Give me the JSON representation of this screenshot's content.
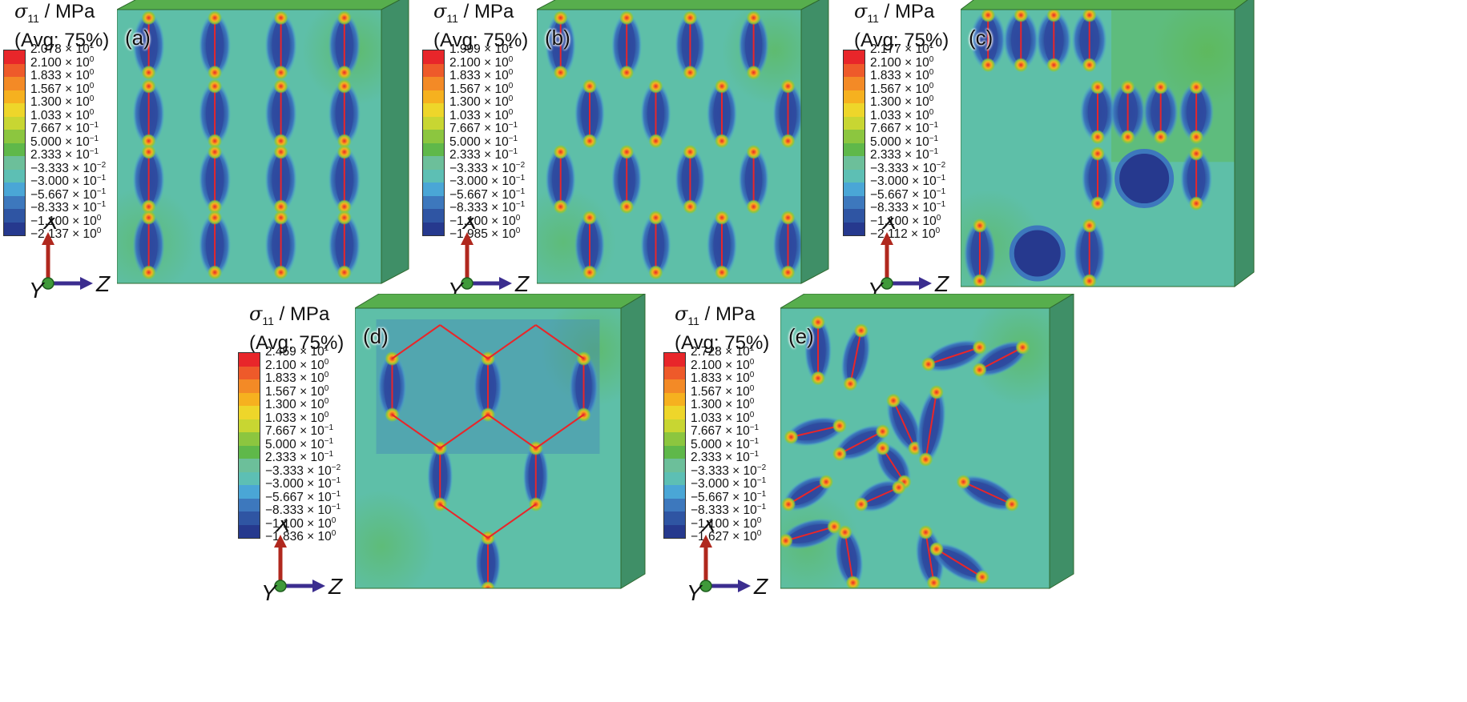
{
  "legend_common": {
    "quantity": "σ",
    "subscript": "11",
    "unit": " / MPa",
    "averaging": "(Avg: 75%)",
    "colors": [
      "#e8262a",
      "#ee5a2a",
      "#f38a26",
      "#f6b11f",
      "#eed62a",
      "#c8d632",
      "#8cc63f",
      "#5fb84a",
      "#6cbf9a",
      "#5dbfb4",
      "#4aa6d6",
      "#3d78bd",
      "#2f55a3",
      "#26398e"
    ]
  },
  "axes": {
    "x": "X",
    "y": "Y",
    "z": "Z"
  },
  "panels": [
    {
      "label": "(a)",
      "scale": [
        {
          "m": "2.078",
          "e": "1"
        },
        {
          "m": "2.100",
          "e": "0"
        },
        {
          "m": "1.833",
          "e": "0"
        },
        {
          "m": "1.567",
          "e": "0"
        },
        {
          "m": "1.300",
          "e": "0"
        },
        {
          "m": "1.033",
          "e": "0"
        },
        {
          "m": "7.667",
          "e": "−1"
        },
        {
          "m": "5.000",
          "e": "−1"
        },
        {
          "m": "2.333",
          "e": "−1"
        },
        {
          "m": "−3.333",
          "e": "−2"
        },
        {
          "m": "−3.000",
          "e": "−1"
        },
        {
          "m": "−5.667",
          "e": "−1"
        },
        {
          "m": "−8.333",
          "e": "−1"
        },
        {
          "m": "−1.100",
          "e": "0"
        },
        {
          "m": "−2.137",
          "e": "0"
        }
      ]
    },
    {
      "label": "(b)",
      "scale": [
        {
          "m": "1.999",
          "e": "1"
        },
        {
          "m": "2.100",
          "e": "0"
        },
        {
          "m": "1.833",
          "e": "0"
        },
        {
          "m": "1.567",
          "e": "0"
        },
        {
          "m": "1.300",
          "e": "0"
        },
        {
          "m": "1.033",
          "e": "0"
        },
        {
          "m": "7.667",
          "e": "−1"
        },
        {
          "m": "5.000",
          "e": "−1"
        },
        {
          "m": "2.333",
          "e": "−1"
        },
        {
          "m": "−3.333",
          "e": "−2"
        },
        {
          "m": "−3.000",
          "e": "−1"
        },
        {
          "m": "−5.667",
          "e": "−1"
        },
        {
          "m": "−8.333",
          "e": "−1"
        },
        {
          "m": "−1.100",
          "e": "0"
        },
        {
          "m": "−1.985",
          "e": "0"
        }
      ]
    },
    {
      "label": "(c)",
      "scale": [
        {
          "m": "2.177",
          "e": "1"
        },
        {
          "m": "2.100",
          "e": "0"
        },
        {
          "m": "1.833",
          "e": "0"
        },
        {
          "m": "1.567",
          "e": "0"
        },
        {
          "m": "1.300",
          "e": "0"
        },
        {
          "m": "1.033",
          "e": "0"
        },
        {
          "m": "7.667",
          "e": "−1"
        },
        {
          "m": "5.000",
          "e": "−1"
        },
        {
          "m": "2.333",
          "e": "−1"
        },
        {
          "m": "−3.333",
          "e": "−2"
        },
        {
          "m": "−3.000",
          "e": "−1"
        },
        {
          "m": "−5.667",
          "e": "−1"
        },
        {
          "m": "−8.333",
          "e": "−1"
        },
        {
          "m": "−1.100",
          "e": "0"
        },
        {
          "m": "−2.112",
          "e": "0"
        }
      ]
    },
    {
      "label": "(d)",
      "scale": [
        {
          "m": "2.459",
          "e": "1"
        },
        {
          "m": "2.100",
          "e": "0"
        },
        {
          "m": "1.833",
          "e": "0"
        },
        {
          "m": "1.567",
          "e": "0"
        },
        {
          "m": "1.300",
          "e": "0"
        },
        {
          "m": "1.033",
          "e": "0"
        },
        {
          "m": "7.667",
          "e": "−1"
        },
        {
          "m": "5.000",
          "e": "−1"
        },
        {
          "m": "2.333",
          "e": "−1"
        },
        {
          "m": "−3.333",
          "e": "−2"
        },
        {
          "m": "−3.000",
          "e": "−1"
        },
        {
          "m": "−5.667",
          "e": "−1"
        },
        {
          "m": "−8.333",
          "e": "−1"
        },
        {
          "m": "−1.100",
          "e": "0"
        },
        {
          "m": "−1.836",
          "e": "0"
        }
      ]
    },
    {
      "label": "(e)",
      "scale": [
        {
          "m": "2.728",
          "e": "1"
        },
        {
          "m": "2.100",
          "e": "0"
        },
        {
          "m": "1.833",
          "e": "0"
        },
        {
          "m": "1.567",
          "e": "0"
        },
        {
          "m": "1.300",
          "e": "0"
        },
        {
          "m": "1.033",
          "e": "0"
        },
        {
          "m": "7.667",
          "e": "−1"
        },
        {
          "m": "5.000",
          "e": "−1"
        },
        {
          "m": "2.333",
          "e": "−1"
        },
        {
          "m": "−3.333",
          "e": "−2"
        },
        {
          "m": "−3.000",
          "e": "−1"
        },
        {
          "m": "−5.667",
          "e": "−1"
        },
        {
          "m": "−8.333",
          "e": "−1"
        },
        {
          "m": "−1.100",
          "e": "0"
        },
        {
          "m": "−1.627",
          "e": "0"
        }
      ]
    }
  ]
}
